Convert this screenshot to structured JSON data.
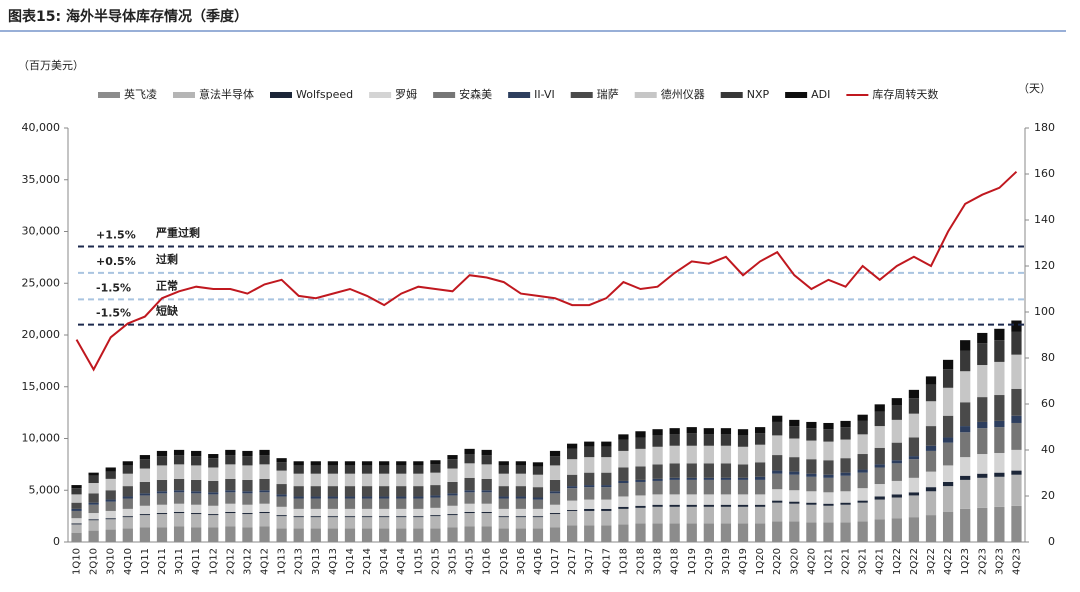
{
  "header": {
    "title": "图表15:  海外半导体库存情况（季度）"
  },
  "chart_data": {
    "type": "stacked-bar-line",
    "y_label": "（百万美元）",
    "y2_label": "（天）",
    "categories": [
      "1Q10",
      "2Q10",
      "3Q10",
      "4Q10",
      "1Q11",
      "2Q11",
      "3Q11",
      "4Q11",
      "1Q12",
      "2Q12",
      "3Q12",
      "4Q12",
      "1Q13",
      "2Q13",
      "3Q13",
      "4Q13",
      "1Q14",
      "2Q14",
      "3Q14",
      "4Q14",
      "1Q15",
      "2Q15",
      "3Q15",
      "4Q15",
      "1Q16",
      "2Q16",
      "3Q16",
      "4Q16",
      "1Q17",
      "2Q17",
      "3Q17",
      "4Q17",
      "1Q18",
      "2Q18",
      "3Q18",
      "4Q18",
      "1Q19",
      "2Q19",
      "3Q19",
      "4Q19",
      "1Q20",
      "2Q20",
      "3Q20",
      "4Q20",
      "1Q21",
      "2Q21",
      "3Q21",
      "4Q21",
      "1Q22",
      "2Q22",
      "3Q22",
      "4Q22",
      "1Q23",
      "2Q23",
      "3Q23",
      "4Q23"
    ],
    "ylim": [
      0,
      40000
    ],
    "yticks": [
      0,
      {
        "value": 5000,
        "label": "5,000"
      },
      {
        "value": 10000,
        "label": "10,000"
      },
      {
        "value": 15000,
        "label": "15,000"
      },
      {
        "value": 20000,
        "label": "20,000"
      },
      {
        "value": 25000,
        "label": "25,000"
      },
      {
        "value": 30000,
        "label": "30,000"
      },
      {
        "value": 35000,
        "label": "35,000"
      },
      {
        "value": 40000,
        "label": "40,000"
      }
    ],
    "y2lim": [
      0,
      180
    ],
    "y2ticks": [
      0,
      20,
      40,
      60,
      80,
      100,
      120,
      140,
      160,
      180
    ],
    "series": [
      {
        "name": "英飞凌",
        "color": "#8c8c8c",
        "values": [
          900,
          1100,
          1200,
          1300,
          1400,
          1400,
          1500,
          1400,
          1400,
          1500,
          1400,
          1500,
          1300,
          1300,
          1300,
          1300,
          1300,
          1300,
          1300,
          1300,
          1300,
          1300,
          1400,
          1500,
          1500,
          1300,
          1300,
          1300,
          1400,
          1600,
          1600,
          1600,
          1700,
          1800,
          1800,
          1800,
          1800,
          1800,
          1800,
          1800,
          1800,
          2000,
          2000,
          1900,
          1900,
          1900,
          2000,
          2200,
          2300,
          2400,
          2600,
          2900,
          3200,
          3300,
          3400,
          3500
        ]
      },
      {
        "name": "意法半导体",
        "color": "#b5b5b5",
        "values": [
          800,
          1000,
          1000,
          1100,
          1200,
          1300,
          1300,
          1300,
          1200,
          1300,
          1300,
          1300,
          1200,
          1100,
          1100,
          1100,
          1100,
          1100,
          1100,
          1100,
          1100,
          1200,
          1200,
          1300,
          1300,
          1100,
          1100,
          1100,
          1300,
          1400,
          1400,
          1400,
          1500,
          1500,
          1600,
          1600,
          1600,
          1600,
          1600,
          1600,
          1600,
          1800,
          1700,
          1700,
          1600,
          1700,
          1800,
          1900,
          2000,
          2100,
          2300,
          2500,
          2800,
          2900,
          2900,
          3000
        ]
      },
      {
        "name": "Wolfspeed",
        "color": "#1c2638",
        "values": [
          100,
          100,
          100,
          100,
          100,
          100,
          100,
          100,
          100,
          100,
          100,
          100,
          100,
          100,
          100,
          100,
          100,
          100,
          100,
          100,
          100,
          100,
          100,
          100,
          100,
          100,
          100,
          100,
          100,
          100,
          200,
          200,
          200,
          200,
          200,
          200,
          200,
          200,
          200,
          200,
          200,
          200,
          200,
          200,
          200,
          200,
          200,
          300,
          300,
          300,
          400,
          400,
          400,
          400,
          400,
          400
        ]
      },
      {
        "name": "罗姆",
        "color": "#d4d4d4",
        "values": [
          500,
          600,
          700,
          700,
          800,
          800,
          800,
          800,
          800,
          800,
          800,
          800,
          800,
          700,
          700,
          700,
          700,
          700,
          700,
          700,
          700,
          700,
          800,
          800,
          800,
          700,
          700,
          700,
          800,
          900,
          900,
          900,
          1000,
          1000,
          1000,
          1000,
          1000,
          1000,
          1000,
          1000,
          1000,
          1100,
          1100,
          1100,
          1100,
          1100,
          1200,
          1200,
          1300,
          1400,
          1500,
          1600,
          1800,
          1900,
          1900,
          2000
        ]
      },
      {
        "name": "安森美",
        "color": "#767676",
        "values": [
          700,
          800,
          900,
          1000,
          1000,
          1100,
          1100,
          1100,
          1100,
          1100,
          1100,
          1100,
          1000,
          1000,
          1000,
          1000,
          1000,
          1000,
          1000,
          1000,
          1000,
          1000,
          1000,
          1100,
          1100,
          1000,
          1000,
          900,
          1100,
          1200,
          1200,
          1200,
          1300,
          1300,
          1300,
          1400,
          1400,
          1400,
          1400,
          1400,
          1400,
          1500,
          1500,
          1400,
          1400,
          1500,
          1500,
          1600,
          1700,
          1800,
          2000,
          2200,
          2400,
          2500,
          2500,
          2600
        ]
      },
      {
        "name": "II-VI",
        "color": "#2d3e5e",
        "values": [
          200,
          200,
          200,
          200,
          200,
          200,
          200,
          200,
          200,
          200,
          200,
          200,
          200,
          200,
          200,
          200,
          200,
          200,
          200,
          200,
          200,
          200,
          200,
          200,
          200,
          200,
          200,
          200,
          200,
          200,
          200,
          200,
          200,
          200,
          200,
          200,
          200,
          200,
          200,
          200,
          300,
          300,
          300,
          300,
          300,
          300,
          300,
          300,
          300,
          300,
          500,
          500,
          600,
          600,
          600,
          700
        ]
      },
      {
        "name": "瑞萨",
        "color": "#4a4a4a",
        "values": [
          600,
          900,
          900,
          1000,
          1100,
          1100,
          1100,
          1100,
          1100,
          1100,
          1100,
          1100,
          1000,
          1000,
          1000,
          1000,
          1000,
          1000,
          1000,
          1000,
          1000,
          1000,
          1100,
          1200,
          1100,
          1000,
          1000,
          1000,
          1100,
          1100,
          1200,
          1200,
          1300,
          1300,
          1400,
          1400,
          1400,
          1400,
          1400,
          1300,
          1400,
          1500,
          1400,
          1400,
          1400,
          1400,
          1500,
          1600,
          1700,
          1800,
          1900,
          2100,
          2300,
          2400,
          2500,
          2600
        ]
      },
      {
        "name": "德州仪器",
        "color": "#c6c6c6",
        "values": [
          800,
          1000,
          1100,
          1200,
          1300,
          1400,
          1400,
          1400,
          1300,
          1400,
          1400,
          1400,
          1300,
          1200,
          1200,
          1200,
          1200,
          1200,
          1200,
          1200,
          1200,
          1200,
          1300,
          1400,
          1400,
          1200,
          1200,
          1200,
          1400,
          1500,
          1500,
          1500,
          1600,
          1700,
          1700,
          1700,
          1700,
          1700,
          1700,
          1700,
          1700,
          1900,
          1800,
          1800,
          1800,
          1800,
          1900,
          2100,
          2200,
          2300,
          2400,
          2700,
          3000,
          3100,
          3200,
          3300
        ]
      },
      {
        "name": "NXP",
        "color": "#383838",
        "values": [
          600,
          700,
          700,
          800,
          900,
          900,
          900,
          900,
          900,
          900,
          900,
          900,
          800,
          800,
          800,
          800,
          800,
          800,
          800,
          800,
          800,
          800,
          900,
          900,
          900,
          800,
          800,
          800,
          900,
          1000,
          1000,
          1000,
          1100,
          1100,
          1100,
          1100,
          1200,
          1100,
          1100,
          1100,
          1100,
          1300,
          1200,
          1200,
          1200,
          1200,
          1300,
          1400,
          1400,
          1500,
          1600,
          1800,
          2000,
          2100,
          2100,
          2200
        ]
      },
      {
        "name": "ADI",
        "color": "#0e0e0e",
        "values": [
          300,
          300,
          400,
          400,
          400,
          500,
          500,
          500,
          400,
          500,
          500,
          500,
          400,
          400,
          400,
          400,
          400,
          400,
          400,
          400,
          400,
          400,
          400,
          500,
          500,
          400,
          400,
          400,
          500,
          500,
          500,
          500,
          500,
          600,
          600,
          600,
          600,
          600,
          600,
          600,
          600,
          600,
          600,
          600,
          600,
          600,
          600,
          700,
          700,
          800,
          800,
          900,
          1000,
          1000,
          1100,
          1100
        ]
      },
      {
        "name": "库存周转天数",
        "color": "#c0181f",
        "axis": "y2",
        "values": [
          88,
          75,
          89,
          95,
          98,
          106,
          109,
          111,
          110,
          110,
          108,
          112,
          114,
          107,
          106,
          108,
          110,
          107,
          103,
          108,
          111,
          110,
          109,
          116,
          115,
          113,
          108,
          107,
          106,
          103,
          103,
          106,
          113,
          110,
          111,
          117,
          122,
          121,
          124,
          116,
          122,
          126,
          116,
          110,
          114,
          111,
          120,
          114,
          120,
          124,
          120,
          135,
          147,
          151,
          154,
          161
        ]
      }
    ],
    "annotations": [
      {
        "label": "+1.5%",
        "text": "严重过剩",
        "value": 128.5,
        "color": "#1c2a4e"
      },
      {
        "label": "+0.5%",
        "text": "过剩",
        "value": 117,
        "color": "#a9c4e0"
      },
      {
        "label": "-1.5%",
        "text": "正常",
        "value": 105.5,
        "color": "#a9c4e0"
      },
      {
        "label": "-1.5%",
        "text": "短缺",
        "value": 94.5,
        "color": "#1c2a4e"
      }
    ]
  }
}
